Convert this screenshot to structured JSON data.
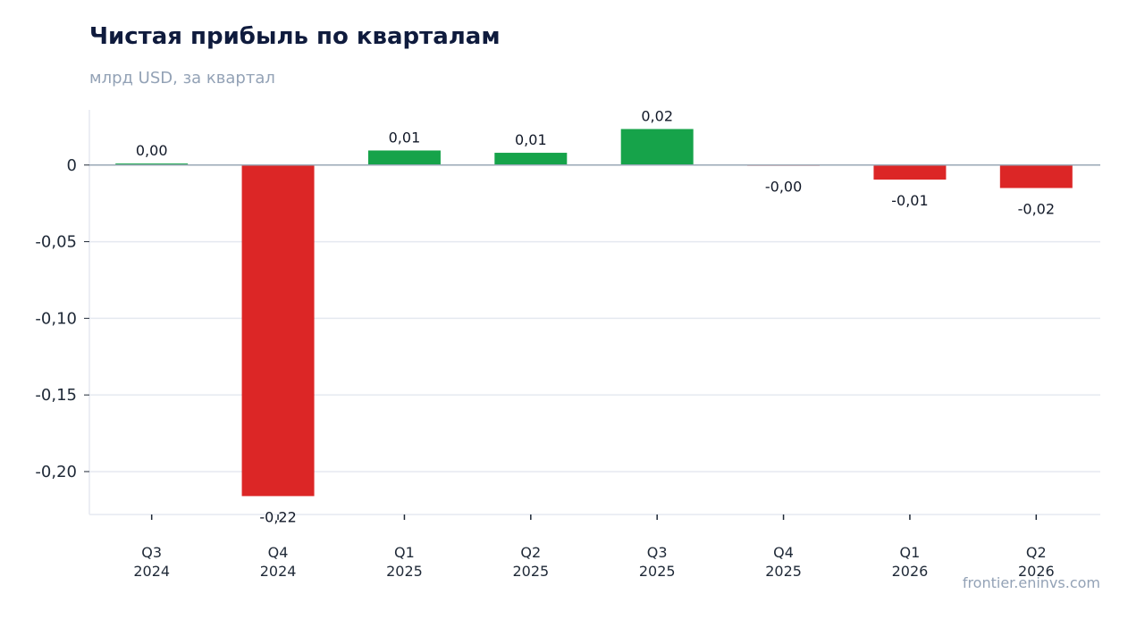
{
  "title": "Чистая прибыль по кварталам",
  "subtitle": "млрд USD, за квартал",
  "watermark": "frontier.eninvs.com",
  "colors": {
    "positive": "#16a34a",
    "negative": "#dc2626",
    "grid": "#e5e9f0",
    "zero_line": "#9aa8b6",
    "axis_text": "#1f2937",
    "label_text": "#111827"
  },
  "chart_data": {
    "type": "bar",
    "categories": [
      [
        "Q3",
        "2024"
      ],
      [
        "Q4",
        "2024"
      ],
      [
        "Q1",
        "2025"
      ],
      [
        "Q2",
        "2025"
      ],
      [
        "Q3",
        "2025"
      ],
      [
        "Q4",
        "2025"
      ],
      [
        "Q1",
        "2026"
      ],
      [
        "Q2",
        "2026"
      ]
    ],
    "values": [
      0.001,
      -0.216,
      0.0095,
      0.008,
      0.0235,
      -0.0005,
      -0.0095,
      -0.015
    ],
    "value_labels": [
      "0,00",
      "-0,22",
      "0,01",
      "0,01",
      "0,02",
      "-0,00",
      "-0,01",
      "-0,02"
    ],
    "ylim": [
      -0.228,
      0.036
    ],
    "yticks": [
      0,
      -0.05,
      -0.1,
      -0.15,
      -0.2
    ],
    "ytick_labels": [
      "0",
      "-0,05",
      "-0,10",
      "-0,15",
      "-0,20"
    ],
    "grid": true,
    "legend": false
  }
}
